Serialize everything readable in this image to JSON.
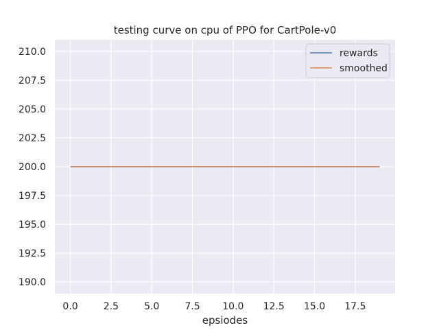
{
  "chart_data": {
    "type": "line",
    "title": "testing curve on cpu of PPO for CartPole-v0",
    "xlabel": "epsiodes",
    "ylabel": "",
    "x": [
      0,
      1,
      2,
      3,
      4,
      5,
      6,
      7,
      8,
      9,
      10,
      11,
      12,
      13,
      14,
      15,
      16,
      17,
      18,
      19
    ],
    "series": [
      {
        "name": "rewards",
        "color": "#4c72b0",
        "values": [
          200,
          200,
          200,
          200,
          200,
          200,
          200,
          200,
          200,
          200,
          200,
          200,
          200,
          200,
          200,
          200,
          200,
          200,
          200,
          200
        ]
      },
      {
        "name": "smoothed",
        "color": "#dd8452",
        "values": [
          200,
          200,
          200,
          200,
          200,
          200,
          200,
          200,
          200,
          200,
          200,
          200,
          200,
          200,
          200,
          200,
          200,
          200,
          200,
          200
        ]
      }
    ],
    "xlim": [
      -0.95,
      19.95
    ],
    "ylim": [
      189.0,
      211.0
    ],
    "xticks": [
      0.0,
      2.5,
      5.0,
      7.5,
      10.0,
      12.5,
      15.0,
      17.5
    ],
    "xtick_labels": [
      "0.0",
      "2.5",
      "5.0",
      "7.5",
      "10.0",
      "12.5",
      "15.0",
      "17.5"
    ],
    "yticks": [
      190.0,
      192.5,
      195.0,
      197.5,
      200.0,
      202.5,
      205.0,
      207.5,
      210.0
    ],
    "ytick_labels": [
      "190.0",
      "192.5",
      "195.0",
      "197.5",
      "200.0",
      "202.5",
      "205.0",
      "207.5",
      "210.0"
    ],
    "grid": true,
    "legend_position": "top-right",
    "background_color": "#eaeaf2",
    "grid_color": "#ffffff"
  }
}
